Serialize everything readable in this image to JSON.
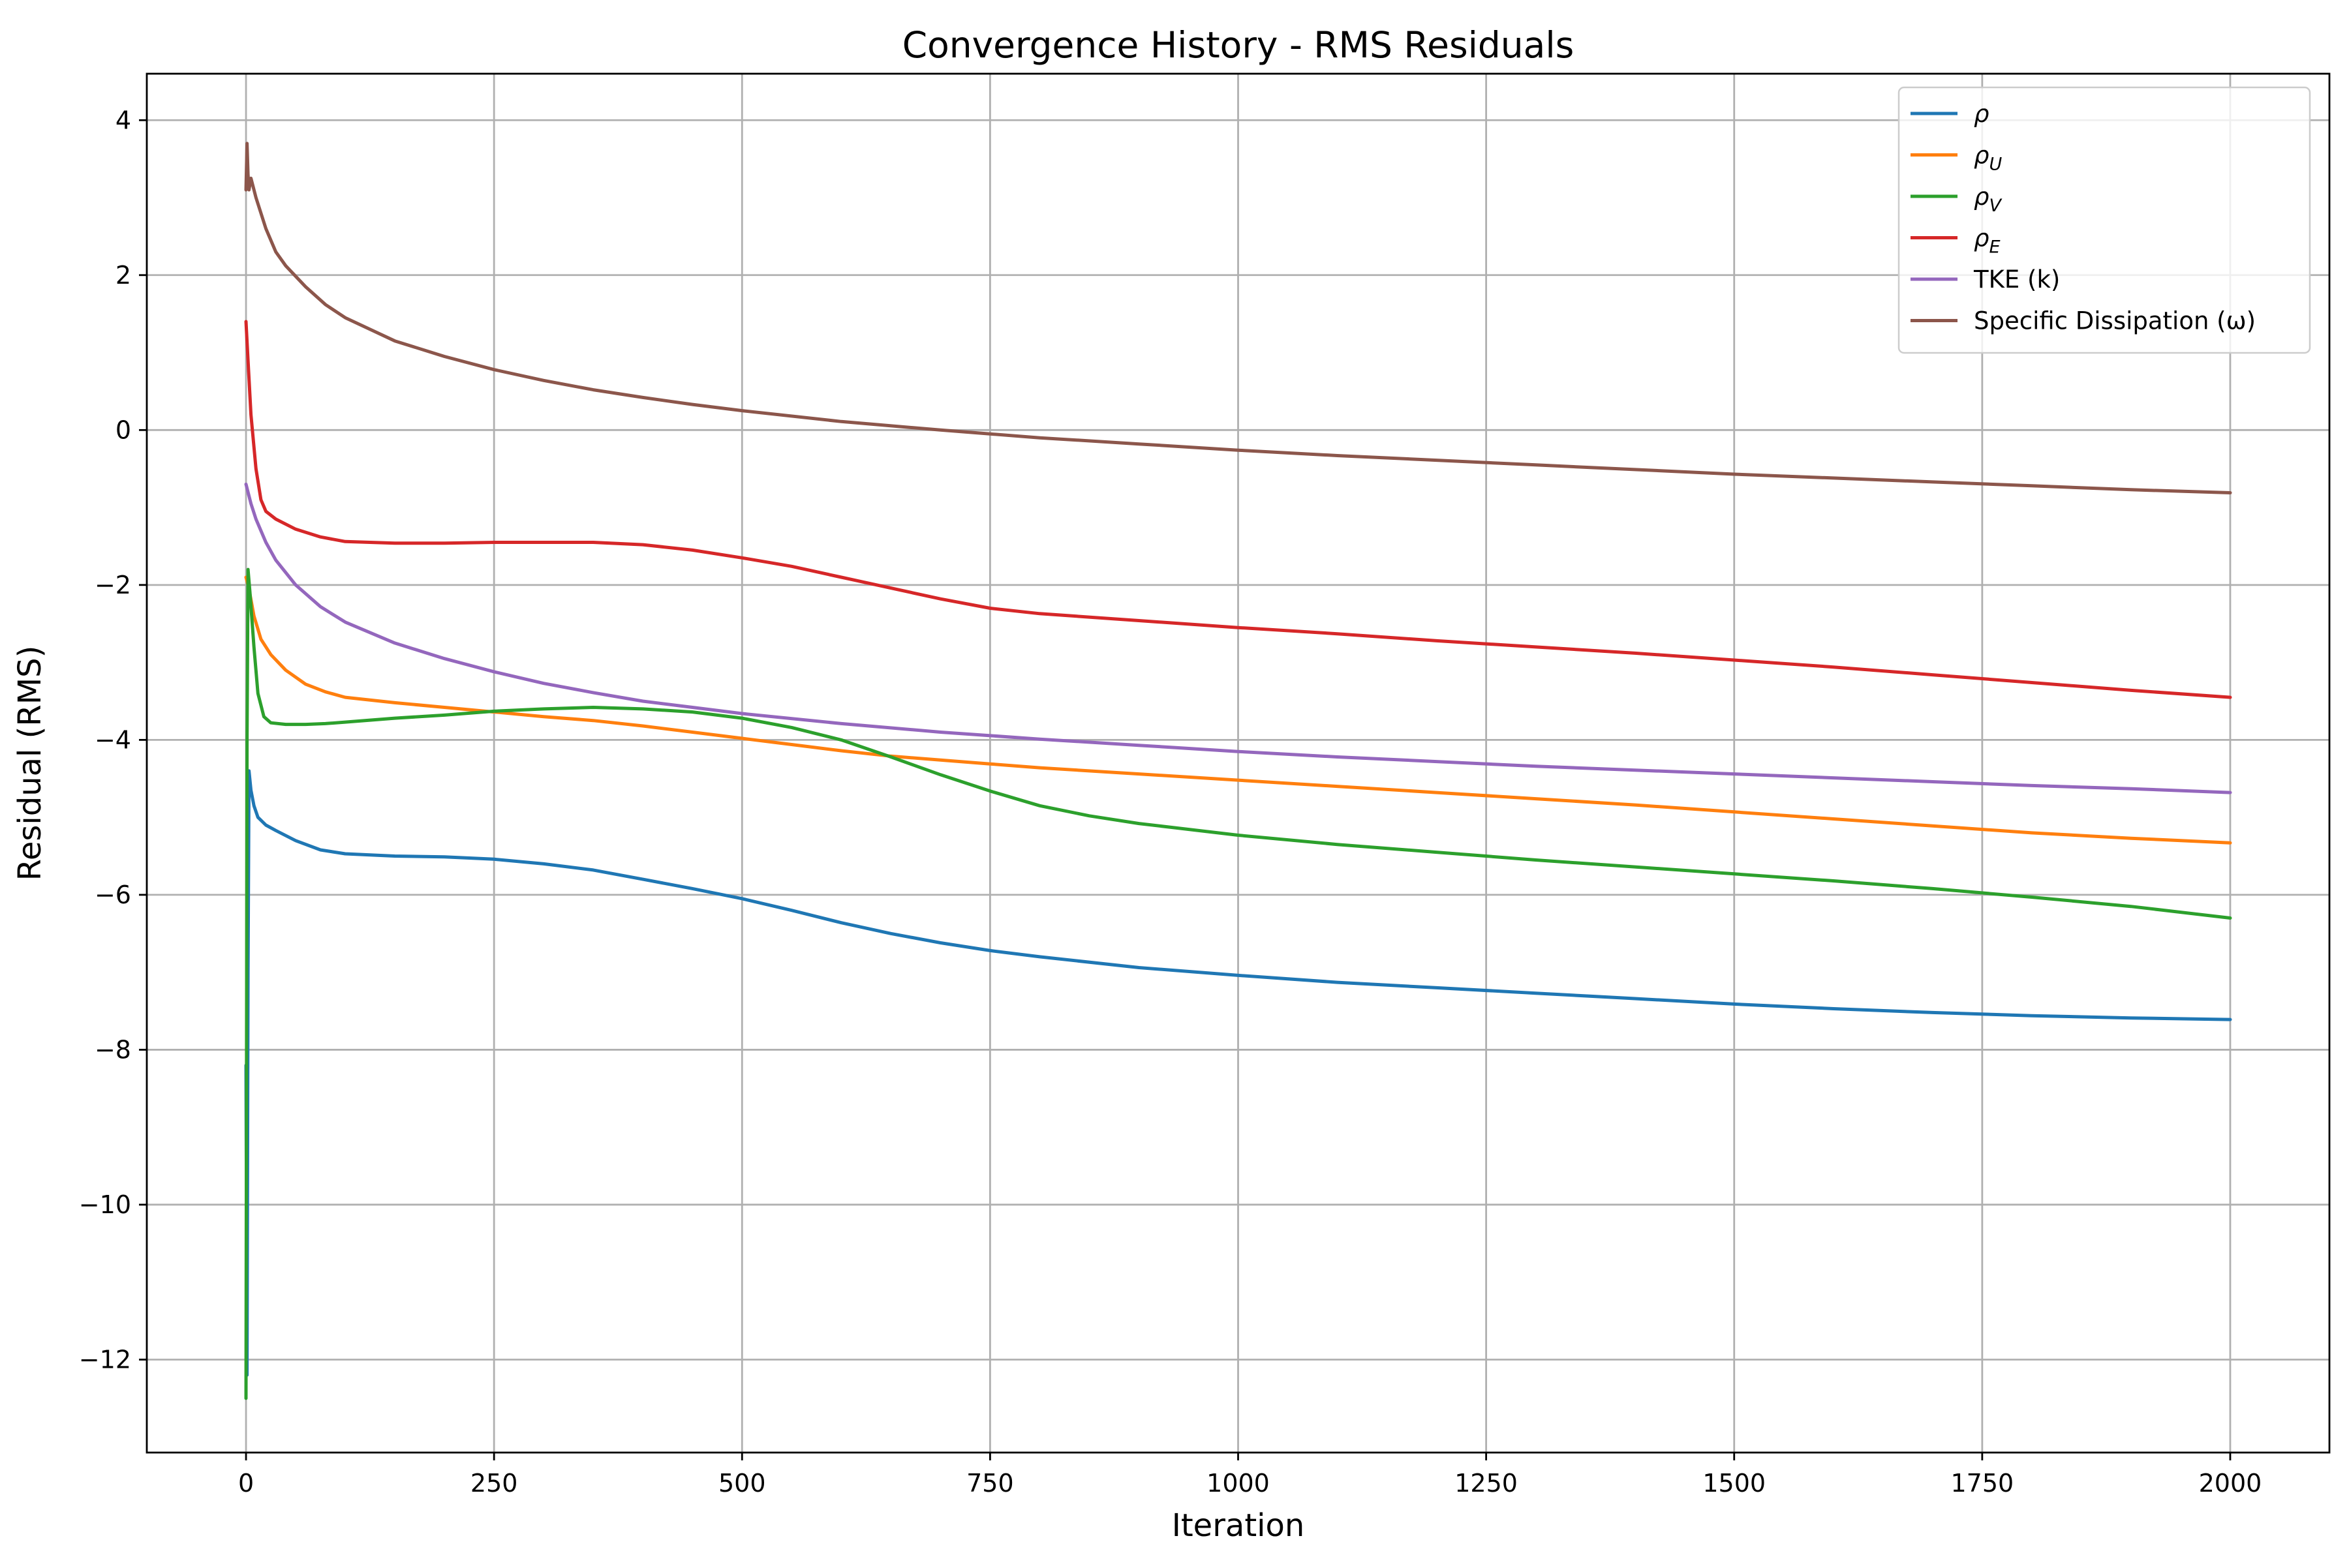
{
  "chart_data": {
    "type": "line",
    "title": "Convergence History - RMS Residuals",
    "xlabel": "Iteration",
    "ylabel": "Residual (RMS)",
    "xlim": [
      -100,
      2100
    ],
    "ylim": [
      -13.2,
      4.6
    ],
    "xticks": [
      0,
      250,
      500,
      750,
      1000,
      1250,
      1500,
      1750,
      2000
    ],
    "xtick_labels": [
      "0",
      "250",
      "500",
      "750",
      "1000",
      "1250",
      "1500",
      "1750",
      "2000"
    ],
    "yticks": [
      4,
      2,
      0,
      -2,
      -4,
      -6,
      -8,
      -10,
      -12
    ],
    "ytick_labels": [
      "4",
      "2",
      "0",
      "−2",
      "−4",
      "−6",
      "−8",
      "−10",
      "−12"
    ],
    "grid": true,
    "legend_position": "top-right",
    "series": [
      {
        "name": "ρ",
        "name_sub": "",
        "color": "#1f77b4",
        "points": [
          [
            0,
            -8.2
          ],
          [
            1,
            -12.2
          ],
          [
            2,
            -7.0
          ],
          [
            3,
            -4.4
          ],
          [
            5,
            -4.65
          ],
          [
            8,
            -4.85
          ],
          [
            12,
            -5.0
          ],
          [
            20,
            -5.1
          ],
          [
            30,
            -5.17
          ],
          [
            50,
            -5.3
          ],
          [
            75,
            -5.42
          ],
          [
            100,
            -5.47
          ],
          [
            150,
            -5.5
          ],
          [
            200,
            -5.51
          ],
          [
            250,
            -5.54
          ],
          [
            300,
            -5.6
          ],
          [
            350,
            -5.68
          ],
          [
            400,
            -5.8
          ],
          [
            450,
            -5.92
          ],
          [
            500,
            -6.05
          ],
          [
            550,
            -6.2
          ],
          [
            600,
            -6.36
          ],
          [
            650,
            -6.5
          ],
          [
            700,
            -6.62
          ],
          [
            750,
            -6.72
          ],
          [
            800,
            -6.8
          ],
          [
            900,
            -6.94
          ],
          [
            1000,
            -7.04
          ],
          [
            1100,
            -7.13
          ],
          [
            1200,
            -7.2
          ],
          [
            1300,
            -7.27
          ],
          [
            1400,
            -7.34
          ],
          [
            1500,
            -7.41
          ],
          [
            1600,
            -7.47
          ],
          [
            1700,
            -7.52
          ],
          [
            1800,
            -7.56
          ],
          [
            1900,
            -7.59
          ],
          [
            2000,
            -7.61
          ]
        ]
      },
      {
        "name": "ρ",
        "name_sub": "U",
        "color": "#ff7f0e",
        "points": [
          [
            0,
            -1.9
          ],
          [
            3,
            -2.05
          ],
          [
            8,
            -2.4
          ],
          [
            15,
            -2.7
          ],
          [
            25,
            -2.9
          ],
          [
            40,
            -3.1
          ],
          [
            60,
            -3.28
          ],
          [
            80,
            -3.38
          ],
          [
            100,
            -3.45
          ],
          [
            150,
            -3.52
          ],
          [
            200,
            -3.58
          ],
          [
            250,
            -3.64
          ],
          [
            300,
            -3.7
          ],
          [
            350,
            -3.75
          ],
          [
            400,
            -3.82
          ],
          [
            450,
            -3.9
          ],
          [
            500,
            -3.98
          ],
          [
            550,
            -4.06
          ],
          [
            600,
            -4.14
          ],
          [
            650,
            -4.21
          ],
          [
            700,
            -4.26
          ],
          [
            750,
            -4.31
          ],
          [
            800,
            -4.36
          ],
          [
            900,
            -4.44
          ],
          [
            1000,
            -4.52
          ],
          [
            1100,
            -4.6
          ],
          [
            1200,
            -4.68
          ],
          [
            1300,
            -4.76
          ],
          [
            1400,
            -4.84
          ],
          [
            1500,
            -4.93
          ],
          [
            1600,
            -5.02
          ],
          [
            1700,
            -5.11
          ],
          [
            1800,
            -5.2
          ],
          [
            1900,
            -5.27
          ],
          [
            2000,
            -5.33
          ]
        ]
      },
      {
        "name": "ρ",
        "name_sub": "V",
        "color": "#2ca02c",
        "points": [
          [
            0,
            -12.5
          ],
          [
            1,
            -4.0
          ],
          [
            2,
            -1.8
          ],
          [
            4,
            -2.1
          ],
          [
            8,
            -2.8
          ],
          [
            12,
            -3.4
          ],
          [
            18,
            -3.7
          ],
          [
            25,
            -3.78
          ],
          [
            40,
            -3.8
          ],
          [
            60,
            -3.8
          ],
          [
            80,
            -3.79
          ],
          [
            100,
            -3.77
          ],
          [
            150,
            -3.72
          ],
          [
            200,
            -3.68
          ],
          [
            250,
            -3.63
          ],
          [
            300,
            -3.6
          ],
          [
            350,
            -3.58
          ],
          [
            400,
            -3.6
          ],
          [
            450,
            -3.64
          ],
          [
            500,
            -3.72
          ],
          [
            550,
            -3.84
          ],
          [
            600,
            -4.0
          ],
          [
            650,
            -4.22
          ],
          [
            700,
            -4.45
          ],
          [
            750,
            -4.66
          ],
          [
            800,
            -4.85
          ],
          [
            850,
            -4.98
          ],
          [
            900,
            -5.08
          ],
          [
            1000,
            -5.23
          ],
          [
            1100,
            -5.35
          ],
          [
            1200,
            -5.45
          ],
          [
            1300,
            -5.55
          ],
          [
            1400,
            -5.64
          ],
          [
            1500,
            -5.73
          ],
          [
            1600,
            -5.82
          ],
          [
            1700,
            -5.92
          ],
          [
            1800,
            -6.03
          ],
          [
            1900,
            -6.15
          ],
          [
            2000,
            -6.3
          ]
        ]
      },
      {
        "name": "ρ",
        "name_sub": "E",
        "color": "#d62728",
        "points": [
          [
            0,
            1.4
          ],
          [
            2,
            0.9
          ],
          [
            5,
            0.2
          ],
          [
            10,
            -0.5
          ],
          [
            15,
            -0.9
          ],
          [
            20,
            -1.05
          ],
          [
            30,
            -1.15
          ],
          [
            50,
            -1.28
          ],
          [
            75,
            -1.38
          ],
          [
            100,
            -1.44
          ],
          [
            150,
            -1.46
          ],
          [
            200,
            -1.46
          ],
          [
            250,
            -1.45
          ],
          [
            300,
            -1.45
          ],
          [
            350,
            -1.45
          ],
          [
            400,
            -1.48
          ],
          [
            450,
            -1.55
          ],
          [
            500,
            -1.65
          ],
          [
            550,
            -1.76
          ],
          [
            600,
            -1.9
          ],
          [
            650,
            -2.04
          ],
          [
            700,
            -2.18
          ],
          [
            750,
            -2.3
          ],
          [
            800,
            -2.37
          ],
          [
            900,
            -2.46
          ],
          [
            1000,
            -2.55
          ],
          [
            1100,
            -2.63
          ],
          [
            1200,
            -2.72
          ],
          [
            1300,
            -2.8
          ],
          [
            1400,
            -2.88
          ],
          [
            1500,
            -2.97
          ],
          [
            1600,
            -3.06
          ],
          [
            1700,
            -3.16
          ],
          [
            1800,
            -3.26
          ],
          [
            1900,
            -3.36
          ],
          [
            2000,
            -3.45
          ]
        ]
      },
      {
        "name": "TKE (k)",
        "name_sub": "",
        "color": "#9467bd",
        "points": [
          [
            0,
            -0.7
          ],
          [
            5,
            -0.95
          ],
          [
            10,
            -1.15
          ],
          [
            20,
            -1.45
          ],
          [
            30,
            -1.68
          ],
          [
            50,
            -2.0
          ],
          [
            75,
            -2.28
          ],
          [
            100,
            -2.48
          ],
          [
            150,
            -2.75
          ],
          [
            200,
            -2.95
          ],
          [
            250,
            -3.12
          ],
          [
            300,
            -3.27
          ],
          [
            350,
            -3.39
          ],
          [
            400,
            -3.5
          ],
          [
            450,
            -3.58
          ],
          [
            500,
            -3.66
          ],
          [
            600,
            -3.79
          ],
          [
            700,
            -3.9
          ],
          [
            800,
            -3.99
          ],
          [
            900,
            -4.07
          ],
          [
            1000,
            -4.15
          ],
          [
            1100,
            -4.22
          ],
          [
            1200,
            -4.28
          ],
          [
            1300,
            -4.34
          ],
          [
            1400,
            -4.39
          ],
          [
            1500,
            -4.44
          ],
          [
            1600,
            -4.49
          ],
          [
            1700,
            -4.54
          ],
          [
            1800,
            -4.59
          ],
          [
            1900,
            -4.63
          ],
          [
            2000,
            -4.68
          ]
        ]
      },
      {
        "name": "Specific Dissipation (ω)",
        "name_sub": "",
        "color": "#8c564b",
        "points": [
          [
            0,
            3.1
          ],
          [
            1,
            3.7
          ],
          [
            2,
            3.3
          ],
          [
            3,
            3.1
          ],
          [
            5,
            3.25
          ],
          [
            10,
            3.0
          ],
          [
            20,
            2.6
          ],
          [
            30,
            2.3
          ],
          [
            40,
            2.12
          ],
          [
            60,
            1.85
          ],
          [
            80,
            1.62
          ],
          [
            100,
            1.45
          ],
          [
            150,
            1.15
          ],
          [
            200,
            0.95
          ],
          [
            250,
            0.78
          ],
          [
            300,
            0.64
          ],
          [
            350,
            0.52
          ],
          [
            400,
            0.42
          ],
          [
            450,
            0.33
          ],
          [
            500,
            0.25
          ],
          [
            600,
            0.11
          ],
          [
            700,
            0.0
          ],
          [
            800,
            -0.1
          ],
          [
            900,
            -0.18
          ],
          [
            1000,
            -0.26
          ],
          [
            1100,
            -0.33
          ],
          [
            1200,
            -0.39
          ],
          [
            1300,
            -0.45
          ],
          [
            1400,
            -0.51
          ],
          [
            1500,
            -0.57
          ],
          [
            1600,
            -0.62
          ],
          [
            1700,
            -0.67
          ],
          [
            1800,
            -0.72
          ],
          [
            1900,
            -0.77
          ],
          [
            2000,
            -0.81
          ]
        ]
      }
    ]
  }
}
